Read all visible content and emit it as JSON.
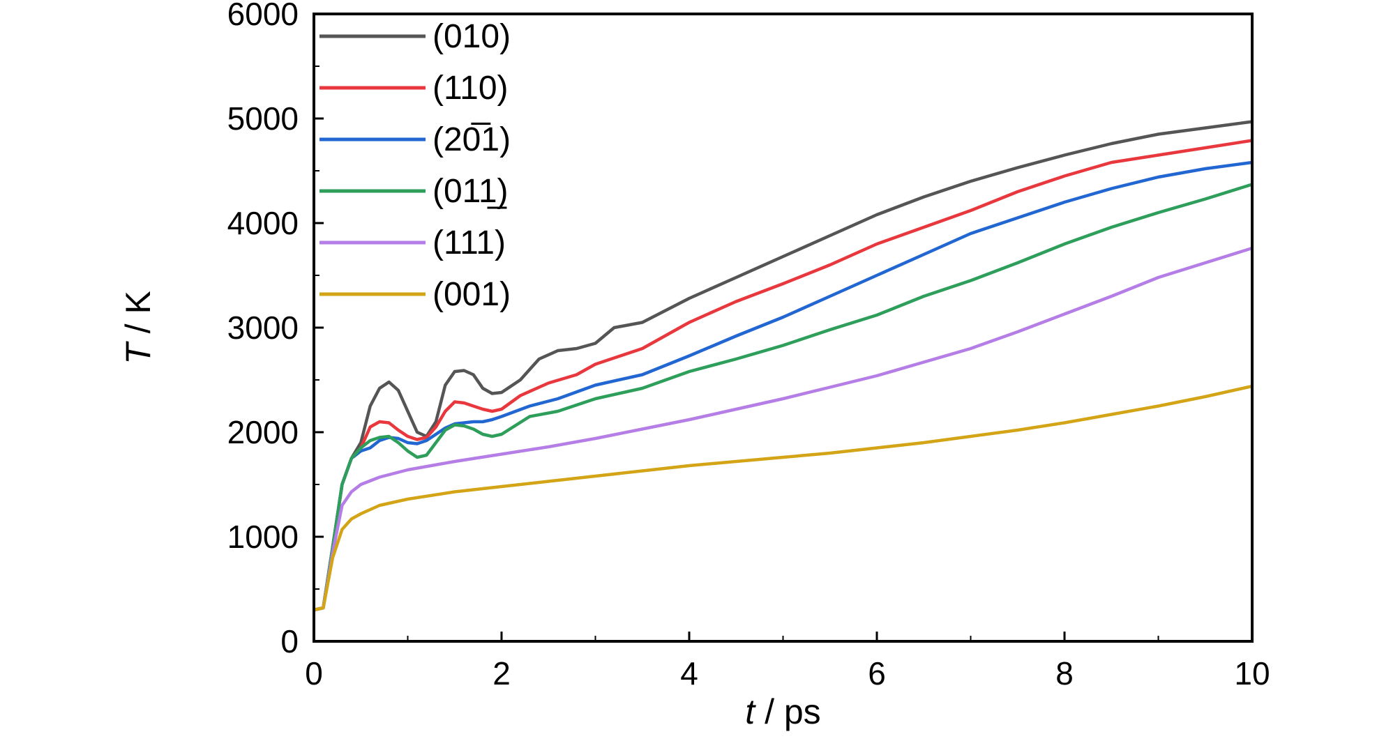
{
  "chart_data": {
    "type": "line",
    "xlabel_var": "t",
    "xlabel_unit": " / ps",
    "ylabel_var": "T",
    "ylabel_unit": " / K",
    "xlim": [
      0,
      10
    ],
    "ylim": [
      0,
      6000
    ],
    "x_ticks": [
      "0",
      "2",
      "4",
      "6",
      "8",
      "10"
    ],
    "y_ticks": [
      "0",
      "1000",
      "2000",
      "3000",
      "4000",
      "5000",
      "6000"
    ],
    "grid": false,
    "legend_position": "top-left",
    "series": [
      {
        "name": "(010)",
        "color": "#555555",
        "points": [
          [
            0,
            300
          ],
          [
            0.1,
            320
          ],
          [
            0.2,
            900
          ],
          [
            0.3,
            1500
          ],
          [
            0.4,
            1750
          ],
          [
            0.5,
            1900
          ],
          [
            0.6,
            2250
          ],
          [
            0.7,
            2420
          ],
          [
            0.8,
            2480
          ],
          [
            0.9,
            2400
          ],
          [
            1.0,
            2200
          ],
          [
            1.1,
            2000
          ],
          [
            1.2,
            1960
          ],
          [
            1.3,
            2100
          ],
          [
            1.4,
            2450
          ],
          [
            1.5,
            2580
          ],
          [
            1.6,
            2590
          ],
          [
            1.7,
            2550
          ],
          [
            1.8,
            2420
          ],
          [
            1.9,
            2370
          ],
          [
            2.0,
            2380
          ],
          [
            2.2,
            2500
          ],
          [
            2.4,
            2700
          ],
          [
            2.6,
            2780
          ],
          [
            2.8,
            2800
          ],
          [
            3.0,
            2850
          ],
          [
            3.2,
            3000
          ],
          [
            3.5,
            3050
          ],
          [
            4.0,
            3280
          ],
          [
            4.5,
            3480
          ],
          [
            5.0,
            3680
          ],
          [
            5.5,
            3880
          ],
          [
            6.0,
            4080
          ],
          [
            6.5,
            4250
          ],
          [
            7.0,
            4400
          ],
          [
            7.5,
            4530
          ],
          [
            8.0,
            4650
          ],
          [
            8.5,
            4760
          ],
          [
            9.0,
            4850
          ],
          [
            9.5,
            4910
          ],
          [
            10.0,
            4970
          ]
        ]
      },
      {
        "name": "(110)",
        "color": "#e8383d",
        "points": [
          [
            0,
            300
          ],
          [
            0.1,
            320
          ],
          [
            0.2,
            900
          ],
          [
            0.3,
            1500
          ],
          [
            0.4,
            1750
          ],
          [
            0.5,
            1850
          ],
          [
            0.6,
            2050
          ],
          [
            0.7,
            2100
          ],
          [
            0.8,
            2090
          ],
          [
            0.9,
            2020
          ],
          [
            1.0,
            1960
          ],
          [
            1.1,
            1930
          ],
          [
            1.2,
            1950
          ],
          [
            1.3,
            2050
          ],
          [
            1.4,
            2200
          ],
          [
            1.5,
            2290
          ],
          [
            1.6,
            2280
          ],
          [
            1.7,
            2250
          ],
          [
            1.8,
            2220
          ],
          [
            1.9,
            2200
          ],
          [
            2.0,
            2220
          ],
          [
            2.2,
            2350
          ],
          [
            2.5,
            2470
          ],
          [
            2.8,
            2550
          ],
          [
            3.0,
            2650
          ],
          [
            3.5,
            2800
          ],
          [
            4.0,
            3050
          ],
          [
            4.5,
            3250
          ],
          [
            5.0,
            3420
          ],
          [
            5.5,
            3600
          ],
          [
            6.0,
            3800
          ],
          [
            6.5,
            3960
          ],
          [
            7.0,
            4120
          ],
          [
            7.5,
            4300
          ],
          [
            8.0,
            4450
          ],
          [
            8.5,
            4580
          ],
          [
            9.0,
            4650
          ],
          [
            9.5,
            4720
          ],
          [
            10.0,
            4790
          ]
        ]
      },
      {
        "name": "(20̅1)",
        "color": "#2166d1",
        "points": [
          [
            0,
            300
          ],
          [
            0.1,
            320
          ],
          [
            0.2,
            900
          ],
          [
            0.3,
            1500
          ],
          [
            0.4,
            1750
          ],
          [
            0.5,
            1820
          ],
          [
            0.6,
            1850
          ],
          [
            0.7,
            1920
          ],
          [
            0.8,
            1950
          ],
          [
            0.9,
            1940
          ],
          [
            1.0,
            1900
          ],
          [
            1.1,
            1890
          ],
          [
            1.2,
            1920
          ],
          [
            1.3,
            1980
          ],
          [
            1.4,
            2040
          ],
          [
            1.5,
            2080
          ],
          [
            1.6,
            2090
          ],
          [
            1.7,
            2100
          ],
          [
            1.8,
            2100
          ],
          [
            1.9,
            2120
          ],
          [
            2.0,
            2150
          ],
          [
            2.3,
            2250
          ],
          [
            2.6,
            2320
          ],
          [
            3.0,
            2450
          ],
          [
            3.5,
            2550
          ],
          [
            4.0,
            2730
          ],
          [
            4.5,
            2920
          ],
          [
            5.0,
            3100
          ],
          [
            5.5,
            3300
          ],
          [
            6.0,
            3500
          ],
          [
            6.5,
            3700
          ],
          [
            7.0,
            3900
          ],
          [
            7.5,
            4050
          ],
          [
            8.0,
            4200
          ],
          [
            8.5,
            4330
          ],
          [
            9.0,
            4440
          ],
          [
            9.5,
            4520
          ],
          [
            10.0,
            4580
          ]
        ]
      },
      {
        "name": "(011̲)",
        "color": "#2e9e5b",
        "points": [
          [
            0,
            300
          ],
          [
            0.1,
            320
          ],
          [
            0.2,
            900
          ],
          [
            0.3,
            1500
          ],
          [
            0.4,
            1750
          ],
          [
            0.5,
            1850
          ],
          [
            0.6,
            1920
          ],
          [
            0.7,
            1950
          ],
          [
            0.8,
            1960
          ],
          [
            0.9,
            1900
          ],
          [
            1.0,
            1820
          ],
          [
            1.1,
            1760
          ],
          [
            1.2,
            1780
          ],
          [
            1.3,
            1900
          ],
          [
            1.4,
            2020
          ],
          [
            1.5,
            2070
          ],
          [
            1.6,
            2060
          ],
          [
            1.7,
            2030
          ],
          [
            1.8,
            1980
          ],
          [
            1.9,
            1960
          ],
          [
            2.0,
            1980
          ],
          [
            2.3,
            2150
          ],
          [
            2.6,
            2200
          ],
          [
            3.0,
            2320
          ],
          [
            3.5,
            2420
          ],
          [
            4.0,
            2580
          ],
          [
            4.5,
            2700
          ],
          [
            5.0,
            2830
          ],
          [
            5.5,
            2980
          ],
          [
            6.0,
            3120
          ],
          [
            6.5,
            3300
          ],
          [
            7.0,
            3450
          ],
          [
            7.5,
            3620
          ],
          [
            8.0,
            3800
          ],
          [
            8.5,
            3960
          ],
          [
            9.0,
            4100
          ],
          [
            9.5,
            4230
          ],
          [
            10.0,
            4370
          ]
        ]
      },
      {
        "name": "(111)",
        "color": "#b57ee6",
        "points": [
          [
            0,
            300
          ],
          [
            0.1,
            320
          ],
          [
            0.2,
            850
          ],
          [
            0.3,
            1300
          ],
          [
            0.4,
            1430
          ],
          [
            0.5,
            1500
          ],
          [
            0.7,
            1570
          ],
          [
            1.0,
            1640
          ],
          [
            1.5,
            1720
          ],
          [
            2.0,
            1790
          ],
          [
            2.5,
            1860
          ],
          [
            3.0,
            1940
          ],
          [
            3.5,
            2030
          ],
          [
            4.0,
            2120
          ],
          [
            4.5,
            2220
          ],
          [
            5.0,
            2320
          ],
          [
            5.5,
            2430
          ],
          [
            6.0,
            2540
          ],
          [
            6.5,
            2670
          ],
          [
            7.0,
            2800
          ],
          [
            7.5,
            2960
          ],
          [
            8.0,
            3130
          ],
          [
            8.5,
            3300
          ],
          [
            9.0,
            3480
          ],
          [
            9.5,
            3620
          ],
          [
            10.0,
            3760
          ]
        ]
      },
      {
        "name": "(001)",
        "color": "#d4a417",
        "points": [
          [
            0,
            300
          ],
          [
            0.1,
            320
          ],
          [
            0.2,
            800
          ],
          [
            0.3,
            1070
          ],
          [
            0.4,
            1170
          ],
          [
            0.5,
            1220
          ],
          [
            0.7,
            1300
          ],
          [
            1.0,
            1360
          ],
          [
            1.5,
            1430
          ],
          [
            2.0,
            1480
          ],
          [
            2.5,
            1530
          ],
          [
            3.0,
            1580
          ],
          [
            3.5,
            1630
          ],
          [
            4.0,
            1680
          ],
          [
            4.5,
            1720
          ],
          [
            5.0,
            1760
          ],
          [
            5.5,
            1800
          ],
          [
            6.0,
            1850
          ],
          [
            6.5,
            1900
          ],
          [
            7.0,
            1960
          ],
          [
            7.5,
            2020
          ],
          [
            8.0,
            2090
          ],
          [
            8.5,
            2170
          ],
          [
            9.0,
            2250
          ],
          [
            9.5,
            2340
          ],
          [
            10.0,
            2440
          ]
        ]
      }
    ]
  }
}
